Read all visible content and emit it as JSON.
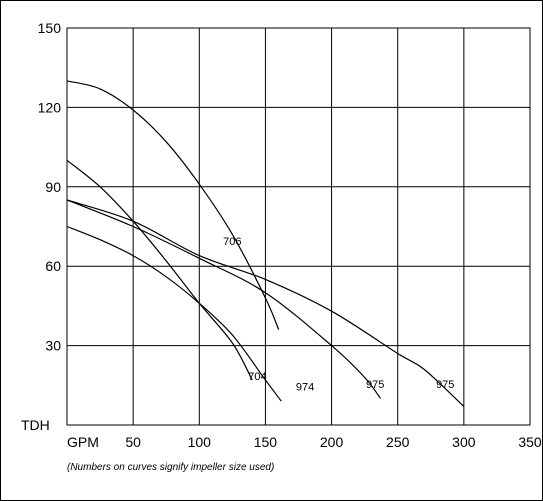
{
  "chart_data": {
    "type": "line",
    "title": "",
    "xlabel": "GPM",
    "ylabel": "TDH",
    "xlim": [
      0,
      350
    ],
    "ylim": [
      0,
      150
    ],
    "x_ticks": [
      50,
      100,
      150,
      200,
      250,
      300,
      350
    ],
    "y_ticks": [
      30,
      60,
      90,
      120,
      150
    ],
    "grid": true,
    "note": "(Numbers on curves signify impeller size used)",
    "series": [
      {
        "name": "706",
        "label_at": [
          118,
          68
        ],
        "x": [
          0,
          25,
          50,
          75,
          100,
          125,
          150,
          160
        ],
        "y": [
          130,
          127,
          119,
          107,
          91,
          72,
          48,
          36
        ]
      },
      {
        "name": "704",
        "label_at": [
          137,
          17
        ],
        "x": [
          0,
          25,
          50,
          75,
          100,
          125,
          140
        ],
        "y": [
          100,
          90,
          77,
          62,
          46,
          31,
          17
        ]
      },
      {
        "name": "974",
        "label_at": [
          173,
          13
        ],
        "x": [
          0,
          25,
          50,
          75,
          100,
          125,
          150,
          162
        ],
        "y": [
          75,
          70,
          64,
          56,
          46,
          34,
          17,
          9
        ]
      },
      {
        "name": "975",
        "label_at": [
          226,
          14
        ],
        "x": [
          0,
          50,
          100,
          150,
          200,
          225,
          237
        ],
        "y": [
          85,
          75,
          63,
          50,
          30,
          18,
          10
        ]
      },
      {
        "name": "975",
        "label_at": [
          279,
          14
        ],
        "x": [
          0,
          50,
          100,
          150,
          200,
          250,
          270,
          300
        ],
        "y": [
          85,
          77,
          64,
          55,
          43,
          27,
          21,
          7
        ]
      }
    ]
  }
}
